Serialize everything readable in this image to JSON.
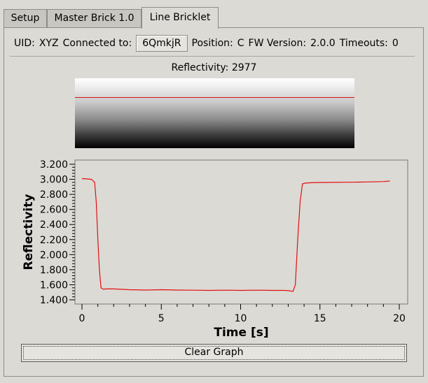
{
  "tabs": [
    {
      "label": "Setup",
      "active": false
    },
    {
      "label": "Master Brick 1.0",
      "active": false
    },
    {
      "label": "Line Bricklet",
      "active": true
    }
  ],
  "info": {
    "uid_label": "UID:",
    "uid_value": "XYZ",
    "connected_label": "Connected to:",
    "connected_value": "6QmkjR",
    "position_label": "Position:",
    "position_value": "C",
    "fw_label": "FW Version:",
    "fw_value": "2.0.0",
    "timeouts_label": "Timeouts:",
    "timeouts_value": "0"
  },
  "reflectivity": {
    "label": "Reflectivity: 2977",
    "value": 2977,
    "max": 4095,
    "marker_color": "#e01010"
  },
  "chart_data": {
    "type": "line",
    "xlabel": "Time [s]",
    "ylabel": "Reflectivity",
    "xlim": [
      0,
      20
    ],
    "ylim": [
      1400,
      3200
    ],
    "xticks": [
      0,
      5,
      10,
      15,
      20
    ],
    "yticks": [
      1400,
      1600,
      1800,
      2000,
      2200,
      2400,
      2600,
      2800,
      3000,
      3200
    ],
    "ytick_labels": [
      "1.400",
      "1.600",
      "1.800",
      "2.000",
      "2.200",
      "2.400",
      "2.600",
      "2.800",
      "3.000",
      "3.200"
    ],
    "series": [
      {
        "color": "#e01010",
        "x": [
          0,
          0.3,
          0.6,
          0.8,
          0.9,
          1.0,
          1.1,
          1.2,
          1.35,
          1.5,
          2,
          3,
          4,
          5,
          6,
          7,
          8,
          9,
          10,
          11,
          12,
          12.8,
          13.1,
          13.3,
          13.45,
          13.6,
          13.75,
          13.9,
          14.1,
          14.5,
          15,
          16,
          17,
          18,
          19,
          19.4
        ],
        "y": [
          3010,
          3005,
          3000,
          2960,
          2700,
          2200,
          1800,
          1560,
          1540,
          1545,
          1545,
          1535,
          1530,
          1535,
          1530,
          1528,
          1525,
          1528,
          1525,
          1528,
          1525,
          1525,
          1520,
          1510,
          1600,
          2200,
          2700,
          2940,
          2950,
          2955,
          2958,
          2960,
          2962,
          2965,
          2970,
          2977
        ]
      }
    ]
  },
  "button": {
    "clear_label": "Clear Graph"
  }
}
